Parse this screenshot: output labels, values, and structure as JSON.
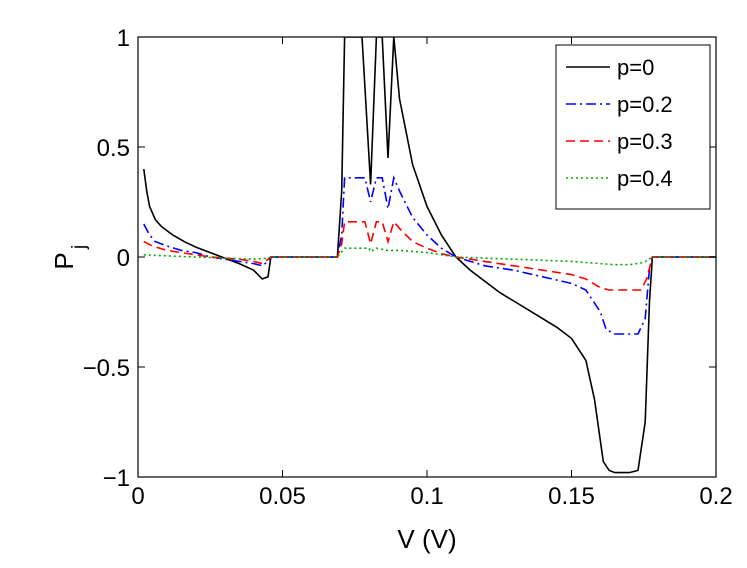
{
  "chart_data": {
    "type": "line",
    "title": "",
    "xlabel": "V (V)",
    "ylabel_main": "P",
    "ylabel_sub": "j",
    "xlim": [
      0,
      0.2
    ],
    "ylim": [
      -1,
      1
    ],
    "x_ticks": [
      0,
      0.05,
      0.1,
      0.15,
      0.2
    ],
    "x_tick_labels": [
      "0",
      "0.05",
      "0.1",
      "0.15",
      "0.2"
    ],
    "y_ticks": [
      -1,
      -0.5,
      0,
      0.5,
      1
    ],
    "y_tick_labels": [
      "−1",
      "−0.5",
      "0",
      "0.5",
      "1"
    ],
    "grid": false,
    "legend_position": "top-right",
    "series": [
      {
        "name": "p=0",
        "color": "#000000",
        "dash": "solid",
        "points": [
          [
            0.002,
            0.4
          ],
          [
            0.003,
            0.3
          ],
          [
            0.004,
            0.23
          ],
          [
            0.006,
            0.17
          ],
          [
            0.008,
            0.14
          ],
          [
            0.012,
            0.1
          ],
          [
            0.016,
            0.07
          ],
          [
            0.02,
            0.045
          ],
          [
            0.025,
            0.02
          ],
          [
            0.03,
            -0.005
          ],
          [
            0.035,
            -0.03
          ],
          [
            0.04,
            -0.06
          ],
          [
            0.043,
            -0.1
          ],
          [
            0.045,
            -0.09
          ],
          [
            0.046,
            0.0
          ],
          [
            0.05,
            0.0
          ],
          [
            0.06,
            0.0
          ],
          [
            0.069,
            0.0
          ],
          [
            0.0705,
            0.3
          ],
          [
            0.0715,
            1.0
          ],
          [
            0.075,
            1.0
          ],
          [
            0.0775,
            1.0
          ],
          [
            0.0805,
            0.33
          ],
          [
            0.0825,
            1.0
          ],
          [
            0.0845,
            1.0
          ],
          [
            0.0865,
            0.45
          ],
          [
            0.0885,
            1.0
          ],
          [
            0.0905,
            0.72
          ],
          [
            0.095,
            0.42
          ],
          [
            0.1,
            0.23
          ],
          [
            0.105,
            0.1
          ],
          [
            0.11,
            0.0
          ],
          [
            0.115,
            -0.06
          ],
          [
            0.12,
            -0.11
          ],
          [
            0.125,
            -0.16
          ],
          [
            0.13,
            -0.2
          ],
          [
            0.135,
            -0.24
          ],
          [
            0.14,
            -0.28
          ],
          [
            0.145,
            -0.32
          ],
          [
            0.15,
            -0.37
          ],
          [
            0.155,
            -0.47
          ],
          [
            0.158,
            -0.65
          ],
          [
            0.161,
            -0.93
          ],
          [
            0.163,
            -0.97
          ],
          [
            0.165,
            -0.98
          ],
          [
            0.17,
            -0.98
          ],
          [
            0.173,
            -0.97
          ],
          [
            0.1755,
            -0.75
          ],
          [
            0.177,
            -0.2
          ],
          [
            0.178,
            0.0
          ],
          [
            0.19,
            0.0
          ],
          [
            0.2,
            0.0
          ]
        ]
      },
      {
        "name": "p=0.2",
        "color": "#0000ff",
        "dash": "dashdot",
        "points": [
          [
            0.002,
            0.15
          ],
          [
            0.004,
            0.1
          ],
          [
            0.006,
            0.07
          ],
          [
            0.01,
            0.05
          ],
          [
            0.015,
            0.03
          ],
          [
            0.02,
            0.02
          ],
          [
            0.025,
            0.0
          ],
          [
            0.03,
            -0.01
          ],
          [
            0.035,
            -0.02
          ],
          [
            0.04,
            -0.03
          ],
          [
            0.043,
            -0.04
          ],
          [
            0.045,
            -0.02
          ],
          [
            0.046,
            0.0
          ],
          [
            0.05,
            0.0
          ],
          [
            0.06,
            0.0
          ],
          [
            0.069,
            0.0
          ],
          [
            0.0705,
            0.1
          ],
          [
            0.0715,
            0.36
          ],
          [
            0.075,
            0.36
          ],
          [
            0.0785,
            0.36
          ],
          [
            0.0805,
            0.25
          ],
          [
            0.0825,
            0.36
          ],
          [
            0.0845,
            0.36
          ],
          [
            0.0865,
            0.22
          ],
          [
            0.0885,
            0.36
          ],
          [
            0.0905,
            0.3
          ],
          [
            0.095,
            0.18
          ],
          [
            0.1,
            0.1
          ],
          [
            0.105,
            0.04
          ],
          [
            0.11,
            0.0
          ],
          [
            0.115,
            -0.02
          ],
          [
            0.12,
            -0.04
          ],
          [
            0.13,
            -0.06
          ],
          [
            0.14,
            -0.09
          ],
          [
            0.15,
            -0.12
          ],
          [
            0.155,
            -0.15
          ],
          [
            0.16,
            -0.25
          ],
          [
            0.162,
            -0.33
          ],
          [
            0.165,
            -0.35
          ],
          [
            0.17,
            -0.35
          ],
          [
            0.173,
            -0.35
          ],
          [
            0.1755,
            -0.28
          ],
          [
            0.177,
            -0.05
          ],
          [
            0.178,
            0.0
          ],
          [
            0.19,
            0.0
          ],
          [
            0.2,
            0.0
          ]
        ]
      },
      {
        "name": "p=0.3",
        "color": "#ff0000",
        "dash": "dashed",
        "points": [
          [
            0.002,
            0.07
          ],
          [
            0.005,
            0.05
          ],
          [
            0.01,
            0.03
          ],
          [
            0.015,
            0.02
          ],
          [
            0.02,
            0.01
          ],
          [
            0.025,
            0.0
          ],
          [
            0.03,
            -0.005
          ],
          [
            0.035,
            -0.01
          ],
          [
            0.04,
            -0.02
          ],
          [
            0.043,
            -0.03
          ],
          [
            0.045,
            -0.01
          ],
          [
            0.046,
            0.0
          ],
          [
            0.05,
            0.0
          ],
          [
            0.06,
            0.0
          ],
          [
            0.069,
            0.0
          ],
          [
            0.0705,
            0.06
          ],
          [
            0.0715,
            0.16
          ],
          [
            0.075,
            0.16
          ],
          [
            0.0785,
            0.16
          ],
          [
            0.0805,
            0.06
          ],
          [
            0.0825,
            0.16
          ],
          [
            0.0845,
            0.16
          ],
          [
            0.0865,
            0.07
          ],
          [
            0.0885,
            0.16
          ],
          [
            0.0905,
            0.13
          ],
          [
            0.095,
            0.07
          ],
          [
            0.1,
            0.04
          ],
          [
            0.105,
            0.015
          ],
          [
            0.11,
            0.0
          ],
          [
            0.12,
            -0.02
          ],
          [
            0.13,
            -0.04
          ],
          [
            0.14,
            -0.06
          ],
          [
            0.15,
            -0.08
          ],
          [
            0.155,
            -0.1
          ],
          [
            0.16,
            -0.14
          ],
          [
            0.163,
            -0.15
          ],
          [
            0.17,
            -0.15
          ],
          [
            0.174,
            -0.15
          ],
          [
            0.176,
            -0.1
          ],
          [
            0.178,
            0.0
          ],
          [
            0.19,
            0.0
          ],
          [
            0.2,
            0.0
          ]
        ]
      },
      {
        "name": "p=0.4",
        "color": "#00aa00",
        "dash": "dotted",
        "points": [
          [
            0.002,
            0.01
          ],
          [
            0.01,
            0.005
          ],
          [
            0.02,
            0.0
          ],
          [
            0.03,
            -0.005
          ],
          [
            0.04,
            -0.01
          ],
          [
            0.045,
            -0.005
          ],
          [
            0.046,
            0.0
          ],
          [
            0.069,
            0.0
          ],
          [
            0.0715,
            0.04
          ],
          [
            0.08,
            0.04
          ],
          [
            0.0805,
            0.025
          ],
          [
            0.0825,
            0.04
          ],
          [
            0.0865,
            0.03
          ],
          [
            0.0905,
            0.03
          ],
          [
            0.1,
            0.02
          ],
          [
            0.11,
            0.0
          ],
          [
            0.12,
            -0.005
          ],
          [
            0.13,
            -0.01
          ],
          [
            0.14,
            -0.015
          ],
          [
            0.15,
            -0.02
          ],
          [
            0.16,
            -0.03
          ],
          [
            0.165,
            -0.035
          ],
          [
            0.17,
            -0.035
          ],
          [
            0.175,
            -0.025
          ],
          [
            0.178,
            0.0
          ],
          [
            0.19,
            0.0
          ],
          [
            0.2,
            0.0
          ]
        ]
      }
    ]
  }
}
